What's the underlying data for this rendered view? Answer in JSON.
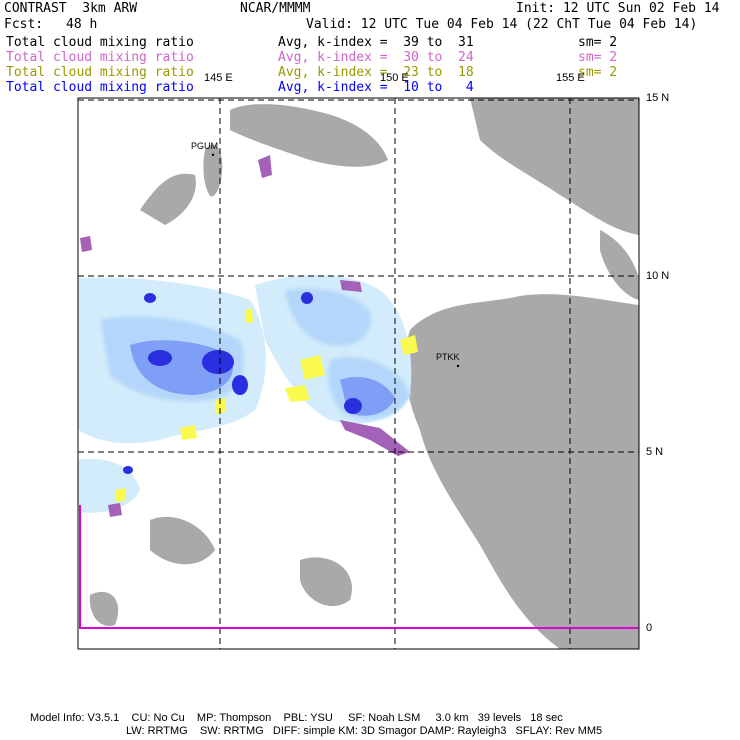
{
  "header": {
    "model": "CONTRAST  3km ARW",
    "org": "NCAR/MMMM",
    "init": "Init: 12 UTC Sun 02 Feb 14",
    "fcst_label": "Fcst:",
    "fcst_value": "48 h",
    "valid": "Valid: 12 UTC Tue 04 Feb 14 (22 ChT Tue 04 Feb 14)"
  },
  "legend": [
    {
      "field": "Total cloud mixing ratio",
      "stat": "Avg, k-index =  39 to  31",
      "sm": "sm= 2",
      "color": "#000000"
    },
    {
      "field": "Total cloud mixing ratio",
      "stat": "Avg, k-index =  30 to  24",
      "sm": "sm= 2",
      "color": "#cc66cc"
    },
    {
      "field": "Total cloud mixing ratio",
      "stat": "Avg, k-index =  23 to  18",
      "sm": "sm= 2",
      "color": "#999900"
    },
    {
      "field": "Total cloud mixing ratio",
      "stat": "Avg, k-index =  10 to   4",
      "sm": "sm= 2",
      "color": "#0000ff"
    }
  ],
  "map": {
    "lon_labels": [
      "145 E",
      "150 E",
      "155 E"
    ],
    "lat_labels": [
      "15 N",
      "10 N",
      "5 N",
      "0"
    ],
    "stations": [
      {
        "id": "PGUM",
        "lon": 144.8,
        "lat": 13.5
      },
      {
        "id": "PTKK",
        "lon": 151.8,
        "lat": 7.5
      }
    ],
    "colors": {
      "land": "#a9a9a9",
      "cloud_light": "#d2ecfb",
      "cloud_mid": "#b4d6fa",
      "cloud_blue": "#7f9ef5",
      "cloud_deep": "#2a2fe0",
      "purple": "#a361b8",
      "yellow": "#fbfb4f",
      "magenta": "#dd00dd",
      "grid": "#000000"
    }
  },
  "footer": {
    "line1": "Model Info: V3.5.1    CU: No Cu    MP: Thompson    PBL: YSU     SF: Noah LSM     3.0 km   39 levels   18 sec",
    "line2": "LW: RRTMG    SW: RRTMG   DIFF: simple KM: 3D Smagor DAMP: Rayleigh3   SFLAY: Rev MM5"
  }
}
